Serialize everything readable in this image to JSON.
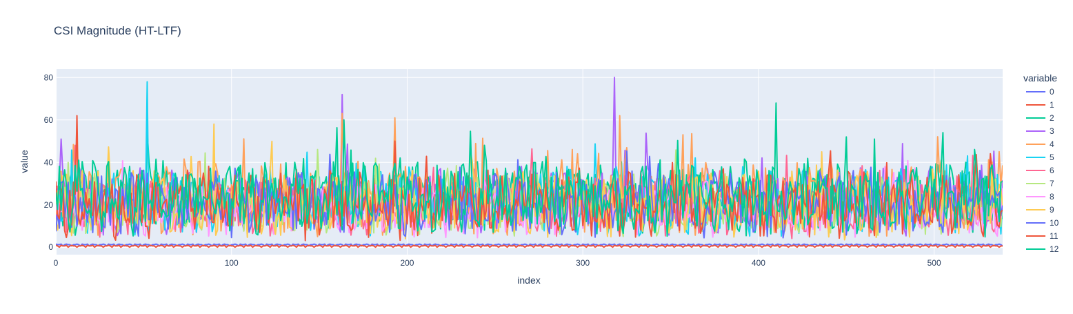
{
  "chart_data": {
    "type": "line",
    "title": "CSI Magnitude (HT-LTF)",
    "xlabel": "index",
    "ylabel": "value",
    "xlim": [
      0,
      539
    ],
    "ylim": [
      -3.5,
      84
    ],
    "x_ticks": [
      0,
      100,
      200,
      300,
      400,
      500
    ],
    "y_ticks": [
      0,
      20,
      40,
      60,
      80
    ],
    "grid": true,
    "legend_title": "variable",
    "legend_position": "right",
    "n_points": 540,
    "series": [
      {
        "name": "0",
        "color": "#636efa",
        "kind": "flat",
        "level": 1.2,
        "spread": 0.6
      },
      {
        "name": "1",
        "color": "#EF553B",
        "kind": "flat",
        "level": 0.6,
        "spread": 0.6
      },
      {
        "name": "2",
        "color": "#00cc96",
        "kind": "noisy",
        "base": 24,
        "spread": 11,
        "seed": 3,
        "peaks": [
          {
            "x": 410,
            "y": 68
          },
          {
            "x": 52,
            "y": 55
          }
        ]
      },
      {
        "name": "3",
        "color": "#ab63fa",
        "kind": "noisy",
        "base": 22,
        "spread": 10,
        "seed": 5,
        "peaks": [
          {
            "x": 318,
            "y": 80
          },
          {
            "x": 163,
            "y": 72
          },
          {
            "x": 3,
            "y": 51
          }
        ]
      },
      {
        "name": "4",
        "color": "#FFA15A",
        "kind": "noisy",
        "base": 23,
        "spread": 11,
        "seed": 7,
        "peaks": [
          {
            "x": 163,
            "y": 63
          },
          {
            "x": 193,
            "y": 61
          },
          {
            "x": 321,
            "y": 62
          },
          {
            "x": 357,
            "y": 53
          }
        ]
      },
      {
        "name": "5",
        "color": "#19d3f3",
        "kind": "noisy",
        "base": 22,
        "spread": 10,
        "seed": 11,
        "peaks": [
          {
            "x": 52,
            "y": 78
          }
        ]
      },
      {
        "name": "6",
        "color": "#FF6692",
        "kind": "noisy",
        "base": 19,
        "spread": 9,
        "seed": 13,
        "peaks": [
          {
            "x": 11,
            "y": 48
          }
        ]
      },
      {
        "name": "7",
        "color": "#B6E880",
        "kind": "noisy",
        "base": 20,
        "spread": 9,
        "seed": 17,
        "peaks": []
      },
      {
        "name": "8",
        "color": "#FF97FF",
        "kind": "noisy",
        "base": 18,
        "spread": 8,
        "seed": 19,
        "peaks": []
      },
      {
        "name": "9",
        "color": "#FECB52",
        "kind": "noisy",
        "base": 20,
        "spread": 10,
        "seed": 23,
        "peaks": [
          {
            "x": 90,
            "y": 58
          }
        ]
      },
      {
        "name": "10",
        "color": "#636efa",
        "kind": "noisy",
        "base": 21,
        "spread": 10,
        "seed": 29,
        "peaks": []
      },
      {
        "name": "11",
        "color": "#EF553B",
        "kind": "noisy",
        "base": 20,
        "spread": 10,
        "seed": 31,
        "peaks": [
          {
            "x": 12,
            "y": 62
          },
          {
            "x": 193,
            "y": 50
          }
        ]
      },
      {
        "name": "12",
        "color": "#00cc96",
        "kind": "noisy",
        "base": 23,
        "spread": 11,
        "seed": 37,
        "peaks": [
          {
            "x": 164,
            "y": 60
          },
          {
            "x": 450,
            "y": 52
          },
          {
            "x": 466,
            "y": 51
          }
        ]
      }
    ]
  }
}
